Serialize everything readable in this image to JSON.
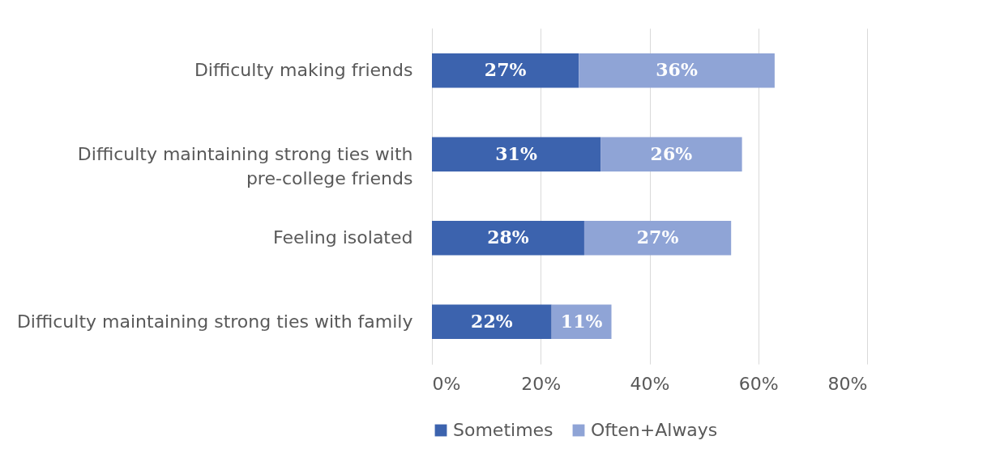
{
  "chart_data": {
    "type": "bar",
    "orientation": "horizontal",
    "stacked": true,
    "categories": [
      "Difficulty making friends",
      "Difficulty maintaining strong ties with pre-college friends",
      "Feeling isolated",
      "Difficulty maintaining strong ties with family"
    ],
    "series": [
      {
        "name": "Sometimes",
        "color": "#3c63ae",
        "values": [
          27,
          31,
          28,
          22
        ],
        "value_labels": [
          "27%",
          "31%",
          "28%",
          "22%"
        ]
      },
      {
        "name": "Often+Always",
        "color": "#8fa4d6",
        "values": [
          36,
          26,
          27,
          11
        ],
        "value_labels": [
          "36%",
          "26%",
          "27%",
          "11%"
        ]
      }
    ],
    "xlim": [
      0,
      80
    ],
    "xticks": [
      {
        "value": 0,
        "label": "0%"
      },
      {
        "value": 20,
        "label": "20%"
      },
      {
        "value": 40,
        "label": "40%"
      },
      {
        "value": 60,
        "label": "60%"
      },
      {
        "value": 80,
        "label": "80%"
      }
    ],
    "grid": "x",
    "legend": "bottom"
  }
}
